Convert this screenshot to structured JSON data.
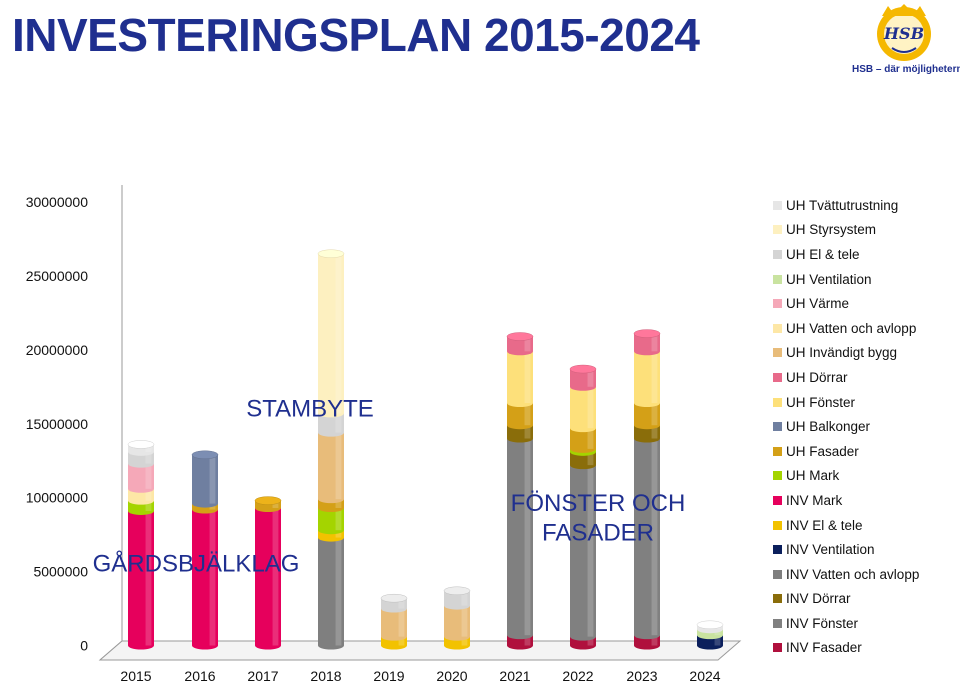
{
  "title": "INVESTERINGSPLAN 2015-2024",
  "logo": {
    "mark_text": "HSB",
    "tagline": "HSB – där möjligheterna bor",
    "color": "#f5b800",
    "text_color": "#1f2f8f"
  },
  "chart_data": {
    "type": "bar",
    "stacked": true,
    "categories": [
      "2015",
      "2016",
      "2017",
      "2018",
      "2019",
      "2020",
      "2021",
      "2022",
      "2023",
      "2024"
    ],
    "ylim": [
      0,
      30000000
    ],
    "yticks": [
      "0",
      "5000000",
      "10000000",
      "15000000",
      "20000000",
      "25000000",
      "30000000"
    ],
    "grid": false,
    "legend_position": "right",
    "series": [
      {
        "name": "INV Fasader",
        "color": "#b0103d",
        "values": [
          0,
          0,
          0,
          0,
          0,
          0,
          700000,
          600000,
          700000,
          0
        ]
      },
      {
        "name": "INV Fönster",
        "color": "#808080",
        "values": [
          0,
          0,
          0,
          0,
          0,
          0,
          13300000,
          11600000,
          13300000,
          0
        ]
      },
      {
        "name": "INV Dörrar",
        "color": "#8a6d0a",
        "values": [
          0,
          0,
          0,
          0,
          0,
          0,
          900000,
          900000,
          900000,
          0
        ]
      },
      {
        "name": "INV Vatten och avlopp",
        "color": "#7f7f7f",
        "values": [
          0,
          0,
          0,
          7300000,
          0,
          0,
          0,
          0,
          0,
          0
        ]
      },
      {
        "name": "INV Ventilation",
        "color": "#0b1f5c",
        "values": [
          0,
          0,
          0,
          0,
          0,
          0,
          0,
          0,
          0,
          700000
        ]
      },
      {
        "name": "INV El & tele",
        "color": "#f2c200",
        "values": [
          0,
          0,
          0,
          500000,
          600000,
          600000,
          0,
          0,
          0,
          0
        ]
      },
      {
        "name": "INV Mark",
        "color": "#e6005c",
        "values": [
          9100000,
          9200000,
          9300000,
          0,
          0,
          0,
          0,
          0,
          0,
          0
        ]
      },
      {
        "name": "UH Mark",
        "color": "#a4d400",
        "values": [
          700000,
          0,
          0,
          1500000,
          0,
          0,
          0,
          200000,
          0,
          0
        ]
      },
      {
        "name": "UH Fasader",
        "color": "#d4a017",
        "values": [
          0,
          400000,
          500000,
          600000,
          0,
          0,
          1500000,
          1400000,
          1500000,
          0
        ]
      },
      {
        "name": "UH Balkonger",
        "color": "#6f7fa0",
        "values": [
          0,
          3300000,
          0,
          0,
          0,
          0,
          0,
          0,
          0,
          0
        ]
      },
      {
        "name": "UH Fönster",
        "color": "#fde07a",
        "values": [
          0,
          0,
          0,
          0,
          0,
          0,
          3500000,
          2800000,
          3500000,
          0
        ]
      },
      {
        "name": "UH Dörrar",
        "color": "#e86a8a",
        "values": [
          0,
          0,
          0,
          0,
          0,
          0,
          1000000,
          1200000,
          1200000,
          0
        ]
      },
      {
        "name": "UH Invändigt bygg",
        "color": "#e8bc7a",
        "values": [
          0,
          0,
          0,
          4500000,
          1900000,
          2100000,
          0,
          0,
          0,
          0
        ]
      },
      {
        "name": "UH Vatten och avlopp",
        "color": "#fde7a6",
        "values": [
          800000,
          0,
          0,
          0,
          0,
          0,
          0,
          0,
          0,
          0
        ]
      },
      {
        "name": "UH Värme",
        "color": "#f5a8b8",
        "values": [
          1700000,
          0,
          0,
          0,
          0,
          0,
          0,
          0,
          0,
          0
        ]
      },
      {
        "name": "UH Ventilation",
        "color": "#c9e3a0",
        "values": [
          0,
          0,
          0,
          0,
          0,
          0,
          0,
          0,
          0,
          400000
        ]
      },
      {
        "name": "UH El & tele",
        "color": "#d4d4d4",
        "values": [
          800000,
          0,
          0,
          1300000,
          700000,
          1000000,
          0,
          0,
          0,
          0
        ]
      },
      {
        "name": "UH Styrsystem",
        "color": "#fdf0c0",
        "values": [
          0,
          0,
          0,
          10800000,
          0,
          0,
          0,
          0,
          0,
          0
        ]
      },
      {
        "name": "UH Tvättutrustning",
        "color": "#e6e6e6",
        "values": [
          500000,
          0,
          0,
          0,
          0,
          0,
          0,
          0,
          0,
          300000
        ]
      }
    ],
    "annotations": [
      {
        "text": "STAMBYTE",
        "color": "#1f2f8f",
        "anchor_category": "2017",
        "anchor_value": 15500000
      },
      {
        "text": "GÅRDSBJÄLKLAG",
        "color": "#1f2f8f",
        "anchor_category": "2016",
        "anchor_value": 5000000
      },
      {
        "text": "FÖNSTER OCH",
        "color": "#1f2f8f",
        "anchor_category": "2022",
        "anchor_value": 9100000
      },
      {
        "text": "FASADER",
        "color": "#1f2f8f",
        "anchor_category": "2022",
        "anchor_value": 7100000
      }
    ]
  },
  "legend_items": [
    {
      "label": "UH Tvättutrustning",
      "color": "#e6e6e6"
    },
    {
      "label": "UH Styrsystem",
      "color": "#fdf0c0"
    },
    {
      "label": "UH El & tele",
      "color": "#d4d4d4"
    },
    {
      "label": "UH Ventilation",
      "color": "#c9e3a0"
    },
    {
      "label": "UH Värme",
      "color": "#f5a8b8"
    },
    {
      "label": "UH Vatten och avlopp",
      "color": "#fde7a6"
    },
    {
      "label": "UH Invändigt bygg",
      "color": "#e8bc7a"
    },
    {
      "label": "UH Dörrar",
      "color": "#e86a8a"
    },
    {
      "label": "UH Fönster",
      "color": "#fde07a"
    },
    {
      "label": "UH Balkonger",
      "color": "#6f7fa0"
    },
    {
      "label": "UH Fasader",
      "color": "#d4a017"
    },
    {
      "label": "UH Mark",
      "color": "#a4d400"
    },
    {
      "label": "INV Mark",
      "color": "#e6005c"
    },
    {
      "label": "INV El & tele",
      "color": "#f2c200"
    },
    {
      "label": "INV Ventilation",
      "color": "#0b1f5c"
    },
    {
      "label": "INV Vatten och avlopp",
      "color": "#7f7f7f"
    },
    {
      "label": "INV Dörrar",
      "color": "#8a6d0a"
    },
    {
      "label": "INV Fönster",
      "color": "#808080"
    },
    {
      "label": "INV Fasader",
      "color": "#b0103d"
    }
  ]
}
